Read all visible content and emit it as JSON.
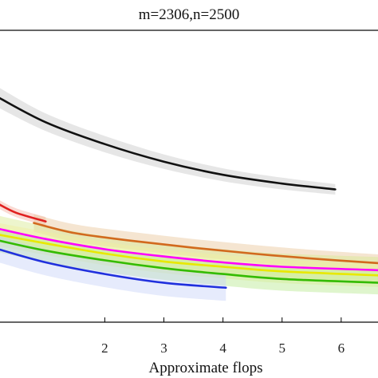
{
  "chart_data": {
    "type": "line",
    "title": "m=2306,n=2500",
    "xlabel": "Approximate flops",
    "ylabel": "",
    "xlim": [
      0.2,
      6.65
    ],
    "ylim": [
      0,
      10
    ],
    "x_ticks": [
      2,
      3,
      4,
      5,
      6
    ],
    "x_tick_labels": [
      "2",
      "3",
      "4",
      "5",
      "6"
    ],
    "grid": false,
    "legend": "none",
    "series": [
      {
        "color": "#111111",
        "band": "#c8c8c8",
        "x": [
          0.2,
          1,
          2,
          3,
          4,
          5,
          5.9
        ],
        "y": [
          7.7,
          6.85,
          6.1,
          5.5,
          5.05,
          4.75,
          4.55
        ],
        "band_halfwidth": [
          0.35,
          0.3,
          0.28,
          0.25,
          0.22,
          0.2,
          0.18
        ]
      },
      {
        "color": "#e02020",
        "band": "#f4b0a0",
        "x": [
          0.2,
          0.5,
          1.0
        ],
        "y": [
          4.05,
          3.75,
          3.45
        ],
        "band_halfwidth": [
          0.15,
          0.15,
          0.15
        ]
      },
      {
        "color": "#d2691e",
        "band": "#e8c59a",
        "x": [
          0.8,
          1.5,
          2.5,
          3.5,
          4.5,
          5.5,
          6.65
        ],
        "y": [
          3.4,
          3.05,
          2.78,
          2.55,
          2.35,
          2.18,
          2.02
        ],
        "band_halfwidth": [
          0.3,
          0.3,
          0.3,
          0.3,
          0.3,
          0.3,
          0.3
        ]
      },
      {
        "color": "#ff00ff",
        "band": "#d8e890",
        "x": [
          0.2,
          1,
          2,
          3,
          4,
          5,
          6.65
        ],
        "y": [
          3.2,
          2.85,
          2.5,
          2.25,
          2.05,
          1.9,
          1.78
        ],
        "band_halfwidth": [
          0.45,
          0.45,
          0.45,
          0.45,
          0.45,
          0.45,
          0.45
        ]
      },
      {
        "color": "#e8e800",
        "band": "#f0f0a0",
        "x": [
          0.2,
          1,
          2,
          3,
          4,
          5,
          6.65
        ],
        "y": [
          3.0,
          2.7,
          2.35,
          2.08,
          1.9,
          1.74,
          1.6
        ],
        "band_halfwidth": [
          0.4,
          0.4,
          0.4,
          0.4,
          0.4,
          0.4,
          0.4
        ]
      },
      {
        "color": "#33bb00",
        "band": "#b8e890",
        "x": [
          0.2,
          1,
          2,
          3,
          4,
          5,
          6.65
        ],
        "y": [
          2.8,
          2.45,
          2.12,
          1.85,
          1.65,
          1.48,
          1.35
        ],
        "band_halfwidth": [
          0.4,
          0.4,
          0.4,
          0.4,
          0.4,
          0.4,
          0.4
        ]
      },
      {
        "color": "#2030dd",
        "band": "#c8d2f8",
        "x": [
          0.2,
          1,
          2,
          3,
          4.05
        ],
        "y": [
          2.5,
          2.05,
          1.65,
          1.35,
          1.18
        ],
        "band_halfwidth": [
          0.45,
          0.45,
          0.45,
          0.45,
          0.45
        ]
      }
    ]
  }
}
